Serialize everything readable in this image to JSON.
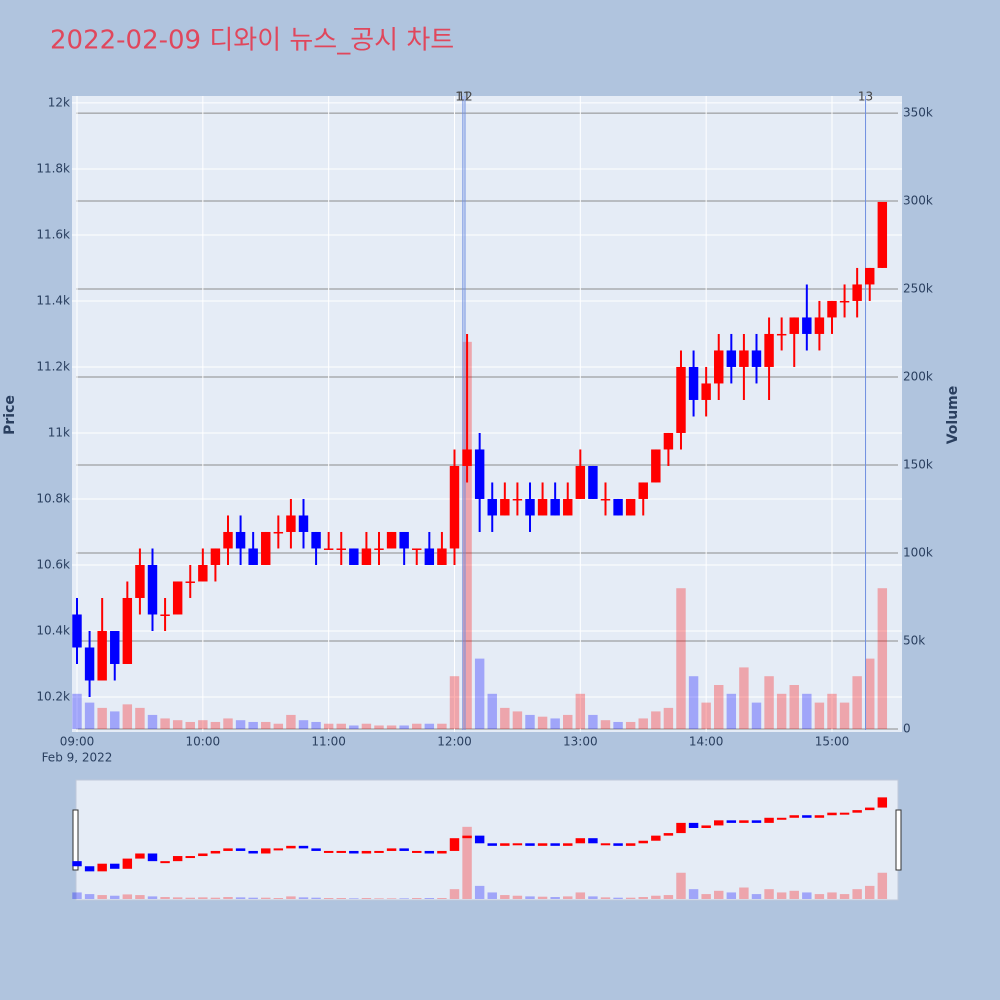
{
  "chart_data": {
    "type": "candlestick",
    "title": "2022-02-09 디와이 뉴스_공시 차트",
    "y_label": "Price",
    "y2_label": "Volume",
    "x_date_label": "Feb 9, 2022",
    "increasing_color": "#ff0000",
    "decreasing_color": "#0000ff",
    "x": [
      "09:00",
      "09:06",
      "09:12",
      "09:18",
      "09:24",
      "09:30",
      "09:36",
      "09:42",
      "09:48",
      "09:54",
      "10:00",
      "10:06",
      "10:12",
      "10:18",
      "10:24",
      "10:30",
      "10:36",
      "10:42",
      "10:48",
      "10:54",
      "11:00",
      "11:06",
      "11:12",
      "11:18",
      "11:24",
      "11:30",
      "11:36",
      "11:42",
      "11:48",
      "11:54",
      "12:00",
      "12:06",
      "12:12",
      "12:18",
      "12:24",
      "12:30",
      "12:36",
      "12:42",
      "12:48",
      "12:54",
      "13:00",
      "13:06",
      "13:12",
      "13:18",
      "13:24",
      "13:30",
      "13:36",
      "13:42",
      "13:48",
      "13:54",
      "14:00",
      "14:06",
      "14:12",
      "14:18",
      "14:24",
      "14:30",
      "14:36",
      "14:42",
      "14:48",
      "14:54",
      "15:00",
      "15:06",
      "15:12",
      "15:18",
      "15:24"
    ],
    "open": [
      10450,
      10350,
      10250,
      10400,
      10300,
      10500,
      10600,
      10450,
      10450,
      10550,
      10550,
      10600,
      10650,
      10700,
      10650,
      10600,
      10700,
      10700,
      10750,
      10700,
      10650,
      10650,
      10650,
      10600,
      10650,
      10650,
      10700,
      10650,
      10650,
      10600,
      10650,
      10900,
      10950,
      10800,
      10750,
      10800,
      10800,
      10750,
      10800,
      10750,
      10800,
      10900,
      10800,
      10800,
      10750,
      10800,
      10850,
      10950,
      11000,
      11200,
      11100,
      11150,
      11250,
      11200,
      11250,
      11200,
      11300,
      11300,
      11350,
      11300,
      11350,
      11400,
      11400,
      11450,
      11500
    ],
    "high": [
      10500,
      10400,
      10500,
      10400,
      10550,
      10650,
      10650,
      10500,
      10550,
      10600,
      10650,
      10650,
      10750,
      10750,
      10700,
      10700,
      10750,
      10800,
      10800,
      10700,
      10700,
      10700,
      10650,
      10700,
      10700,
      10700,
      10700,
      10650,
      10700,
      10700,
      10950,
      11300,
      11000,
      10850,
      10850,
      10850,
      10850,
      10850,
      10850,
      10850,
      10950,
      10900,
      10850,
      10800,
      10800,
      10850,
      10950,
      11000,
      11250,
      11250,
      11200,
      11300,
      11300,
      11300,
      11300,
      11350,
      11350,
      11350,
      11450,
      11400,
      11400,
      11450,
      11500,
      11500,
      11700
    ],
    "low": [
      10300,
      10200,
      10250,
      10250,
      10300,
      10450,
      10400,
      10400,
      10450,
      10500,
      10550,
      10550,
      10600,
      10600,
      10600,
      10600,
      10650,
      10650,
      10650,
      10600,
      10650,
      10600,
      10600,
      10600,
      10600,
      10650,
      10600,
      10600,
      10600,
      10600,
      10600,
      10850,
      10700,
      10700,
      10750,
      10750,
      10700,
      10750,
      10750,
      10750,
      10800,
      10800,
      10750,
      10750,
      10750,
      10750,
      10850,
      10900,
      10950,
      11050,
      11050,
      11100,
      11150,
      11100,
      11150,
      11100,
      11250,
      11200,
      11250,
      11250,
      11300,
      11350,
      11350,
      11400,
      11500
    ],
    "close": [
      10350,
      10250,
      10400,
      10300,
      10500,
      10600,
      10450,
      10450,
      10550,
      10550,
      10600,
      10650,
      10700,
      10650,
      10600,
      10700,
      10700,
      10750,
      10700,
      10650,
      10650,
      10650,
      10600,
      10650,
      10650,
      10700,
      10650,
      10650,
      10600,
      10650,
      10900,
      10950,
      10800,
      10750,
      10800,
      10800,
      10750,
      10800,
      10750,
      10800,
      10900,
      10800,
      10800,
      10750,
      10800,
      10850,
      10950,
      11000,
      11200,
      11100,
      11150,
      11250,
      11200,
      11250,
      11200,
      11300,
      11300,
      11350,
      11300,
      11350,
      11400,
      11400,
      11450,
      11500,
      11700
    ],
    "volume": [
      20000,
      15000,
      12000,
      10000,
      14000,
      12000,
      8000,
      6000,
      5000,
      4000,
      5000,
      4000,
      6000,
      5000,
      4000,
      4000,
      3000,
      8000,
      5000,
      4000,
      3000,
      3000,
      2000,
      3000,
      2000,
      2000,
      2000,
      3000,
      3000,
      3000,
      30000,
      220000,
      40000,
      20000,
      12000,
      10000,
      8000,
      7000,
      6000,
      8000,
      20000,
      8000,
      5000,
      4000,
      4000,
      6000,
      10000,
      12000,
      80000,
      30000,
      15000,
      25000,
      20000,
      35000,
      15000,
      30000,
      20000,
      25000,
      20000,
      15000,
      20000,
      15000,
      30000,
      40000,
      80000
    ],
    "xlim": [
      "09:00",
      "15:31"
    ],
    "xticks": [
      "09:00",
      "10:00",
      "11:00",
      "12:00",
      "13:00",
      "14:00",
      "15:00"
    ],
    "ylim": [
      10100,
      12021
    ],
    "yticks": [
      {
        "value": 10200,
        "label": "10.2k"
      },
      {
        "value": 10400,
        "label": "10.4k"
      },
      {
        "value": 10600,
        "label": "10.6k"
      },
      {
        "value": 10800,
        "label": "10.8k"
      },
      {
        "value": 11000,
        "label": "11k"
      },
      {
        "value": 11200,
        "label": "11.2k"
      },
      {
        "value": 11400,
        "label": "11.4k"
      },
      {
        "value": 11600,
        "label": "11.6k"
      },
      {
        "value": 11800,
        "label": "11.8k"
      },
      {
        "value": 12000,
        "label": "12k"
      }
    ],
    "y2lim": [
      0,
      359700
    ],
    "y2ticks": [
      0,
      {
        "value": 50000,
        "label": "50k"
      },
      {
        "value": 100000,
        "label": "100k"
      },
      {
        "value": 150000,
        "label": "150k"
      },
      {
        "value": 200000,
        "label": "200k"
      },
      {
        "value": 250000,
        "label": "250k"
      },
      {
        "value": 300000,
        "label": "300k"
      },
      {
        "value": 350000,
        "label": "350k"
      }
    ],
    "annotations": [
      {
        "x": "12:04",
        "label": "11"
      },
      {
        "x": "12:05",
        "label": "12"
      },
      {
        "x": "15:16",
        "label": "13"
      }
    ],
    "grid": true,
    "range_slider": true
  }
}
